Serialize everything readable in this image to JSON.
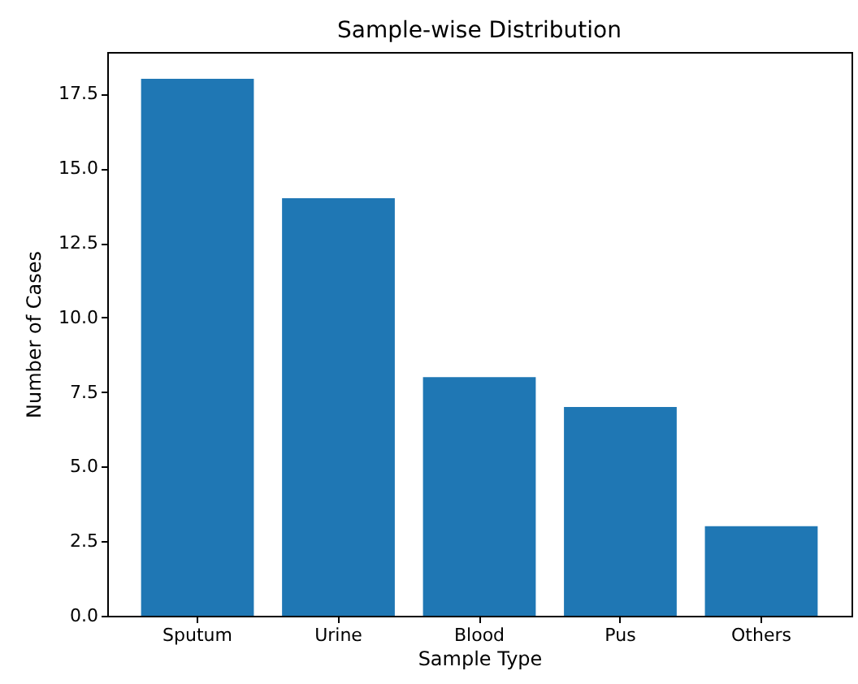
{
  "chart_data": {
    "type": "bar",
    "title": "Sample-wise Distribution",
    "xlabel": "Sample Type",
    "ylabel": "Number of Cases",
    "categories": [
      "Sputum",
      "Urine",
      "Blood",
      "Pus",
      "Others"
    ],
    "values": [
      18,
      14,
      8,
      7,
      3
    ],
    "color": "#1f77b4",
    "ylim": [
      0,
      18.9
    ],
    "yticks": [
      {
        "value": 0,
        "label": "0.0"
      },
      2.5,
      {
        "value": 5,
        "label": "5.0"
      },
      7.5,
      {
        "value": 10,
        "label": "10.0"
      },
      12.5,
      {
        "value": 15,
        "label": "15.0"
      },
      17.5
    ],
    "grid": false
  }
}
